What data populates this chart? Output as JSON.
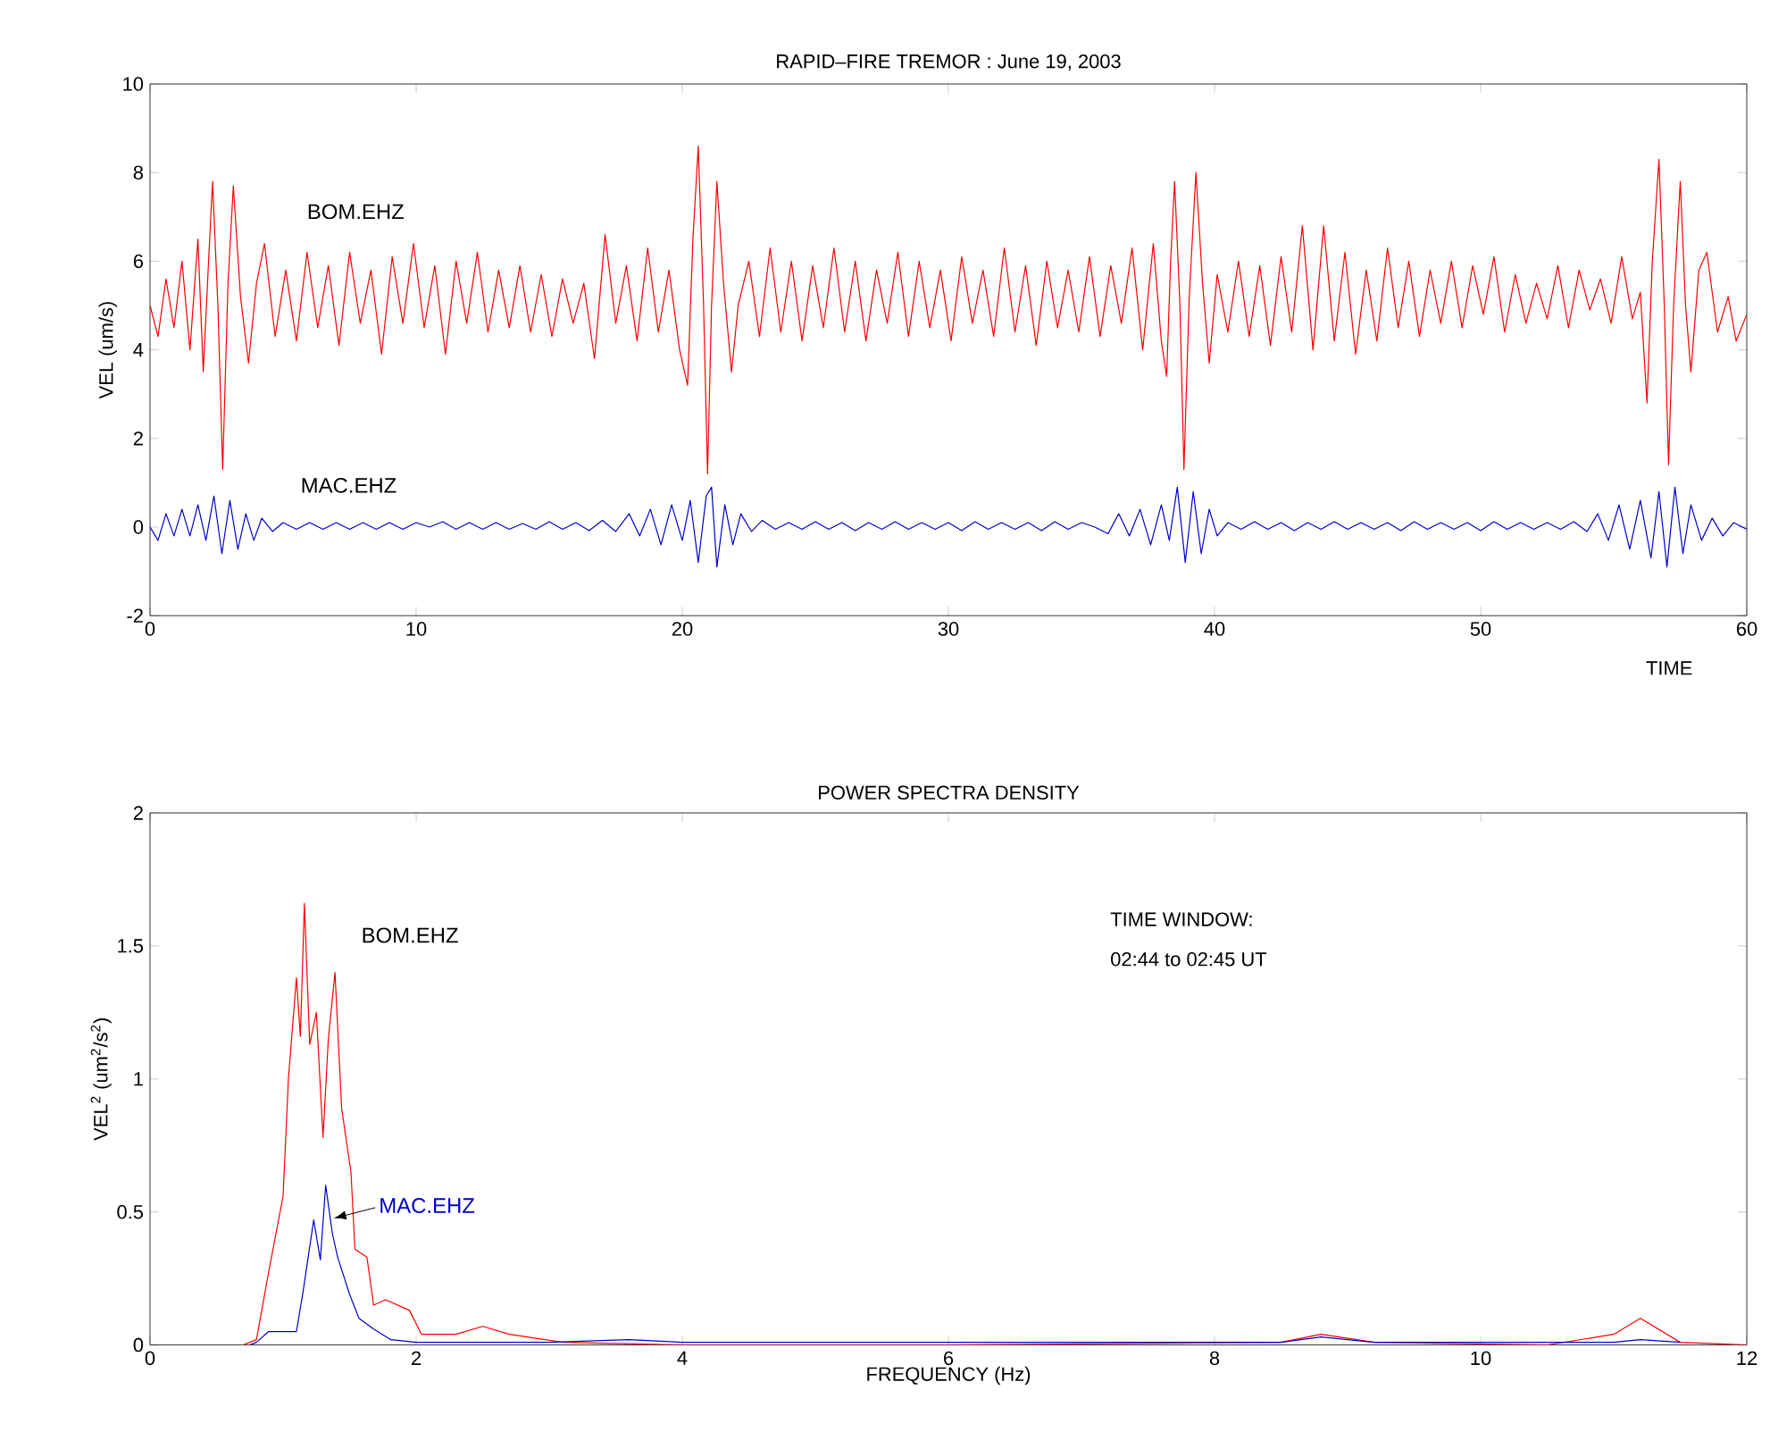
{
  "chart_data": [
    {
      "type": "line",
      "title": "RAPID–FIRE TREMOR : June 19, 2003",
      "xlabel": "TIME",
      "ylabel": "VEL (um/s)",
      "xlim": [
        0,
        60
      ],
      "ylim": [
        -2,
        10
      ],
      "xticks": [
        0,
        10,
        20,
        30,
        40,
        50,
        60
      ],
      "yticks": [
        -2,
        0,
        2,
        4,
        6,
        8,
        10
      ],
      "series": [
        {
          "name": "BOM.EHZ",
          "color": "#ff0000",
          "x": [
            0,
            0.3,
            0.6,
            0.9,
            1.2,
            1.5,
            1.8,
            2.0,
            2.2,
            2.35,
            2.55,
            2.73,
            2.93,
            3.13,
            3.4,
            3.7,
            4.0,
            4.3,
            4.7,
            5.1,
            5.5,
            5.9,
            6.3,
            6.7,
            7.1,
            7.5,
            7.9,
            8.3,
            8.7,
            9.1,
            9.5,
            9.9,
            10.3,
            10.7,
            11.1,
            11.5,
            11.9,
            12.3,
            12.7,
            13.1,
            13.5,
            13.9,
            14.3,
            14.7,
            15.1,
            15.5,
            15.9,
            16.3,
            16.7,
            17.1,
            17.5,
            17.9,
            18.3,
            18.7,
            19.1,
            19.5,
            19.9,
            20.2,
            20.4,
            20.6,
            20.8,
            20.95,
            21.1,
            21.3,
            21.55,
            21.85,
            22.1,
            22.5,
            22.9,
            23.3,
            23.7,
            24.1,
            24.5,
            24.9,
            25.3,
            25.7,
            26.1,
            26.5,
            26.9,
            27.3,
            27.7,
            28.1,
            28.5,
            28.9,
            29.3,
            29.7,
            30.1,
            30.5,
            30.9,
            31.3,
            31.7,
            32.1,
            32.5,
            32.9,
            33.3,
            33.7,
            34.1,
            34.5,
            34.9,
            35.3,
            35.7,
            36.1,
            36.5,
            36.9,
            37.3,
            37.7,
            38.0,
            38.2,
            38.35,
            38.5,
            38.7,
            38.85,
            39.05,
            39.3,
            39.55,
            39.8,
            40.1,
            40.5,
            40.9,
            41.3,
            41.7,
            42.1,
            42.5,
            42.9,
            43.3,
            43.7,
            44.1,
            44.5,
            44.9,
            45.3,
            45.7,
            46.1,
            46.5,
            46.9,
            47.3,
            47.7,
            48.1,
            48.5,
            48.9,
            49.3,
            49.7,
            50.1,
            50.5,
            50.9,
            51.3,
            51.7,
            52.1,
            52.5,
            52.9,
            53.3,
            53.7,
            54.1,
            54.5,
            54.9,
            55.3,
            55.7,
            56.0,
            56.25,
            56.45,
            56.7,
            56.9,
            57.06,
            57.25,
            57.5,
            57.7,
            57.9,
            58.2,
            58.5,
            58.9,
            59.3,
            59.6,
            60
          ],
          "values": [
            5.0,
            4.3,
            5.6,
            4.5,
            6.0,
            4.0,
            6.5,
            3.5,
            6.0,
            7.8,
            5.0,
            1.3,
            5.5,
            7.7,
            5.2,
            3.7,
            5.5,
            6.4,
            4.3,
            5.8,
            4.2,
            6.2,
            4.5,
            5.9,
            4.1,
            6.2,
            4.6,
            5.8,
            3.9,
            6.1,
            4.6,
            6.4,
            4.5,
            5.9,
            3.9,
            6.0,
            4.6,
            6.2,
            4.4,
            5.8,
            4.5,
            5.9,
            4.4,
            5.7,
            4.3,
            5.6,
            4.6,
            5.5,
            3.8,
            6.6,
            4.6,
            5.9,
            4.2,
            6.3,
            4.4,
            5.8,
            4.0,
            3.2,
            6.5,
            8.6,
            5.0,
            1.2,
            5.0,
            7.8,
            5.5,
            3.5,
            5.0,
            6.0,
            4.3,
            6.3,
            4.4,
            6.0,
            4.2,
            5.9,
            4.5,
            6.3,
            4.4,
            6.0,
            4.2,
            5.8,
            4.6,
            6.2,
            4.3,
            6.0,
            4.5,
            5.8,
            4.2,
            6.1,
            4.6,
            5.8,
            4.3,
            6.3,
            4.4,
            5.9,
            4.1,
            6.0,
            4.5,
            5.8,
            4.4,
            6.1,
            4.3,
            5.9,
            4.6,
            6.3,
            4.0,
            6.4,
            4.2,
            3.4,
            6.0,
            7.8,
            5.0,
            1.3,
            5.2,
            8.0,
            5.5,
            3.7,
            5.7,
            4.4,
            6.0,
            4.3,
            5.9,
            4.1,
            6.1,
            4.4,
            6.8,
            4.0,
            6.8,
            4.2,
            6.2,
            3.9,
            5.8,
            4.2,
            6.3,
            4.5,
            6.0,
            4.3,
            5.8,
            4.6,
            6.0,
            4.5,
            5.9,
            4.8,
            6.1,
            4.4,
            5.7,
            4.6,
            5.5,
            4.7,
            5.9,
            4.5,
            5.8,
            4.9,
            5.6,
            4.6,
            6.1,
            4.7,
            5.3,
            2.8,
            6.0,
            8.3,
            5.0,
            1.4,
            5.0,
            7.8,
            5.0,
            3.5,
            5.8,
            6.2,
            4.4,
            5.2,
            4.2,
            4.8
          ]
        },
        {
          "name": "MAC.EHZ",
          "color": "#0000cc",
          "x": [
            0,
            0.3,
            0.6,
            0.9,
            1.2,
            1.5,
            1.8,
            2.1,
            2.4,
            2.7,
            3.0,
            3.3,
            3.6,
            3.9,
            4.2,
            4.6,
            5.0,
            5.5,
            6.0,
            6.5,
            7.0,
            7.5,
            8.0,
            8.5,
            9.0,
            9.5,
            10.0,
            10.5,
            11.0,
            11.5,
            12.0,
            12.5,
            13.0,
            13.5,
            14.0,
            14.5,
            15.0,
            15.5,
            16.0,
            16.5,
            17.0,
            17.5,
            18.0,
            18.4,
            18.8,
            19.2,
            19.6,
            20.0,
            20.3,
            20.6,
            20.9,
            21.1,
            21.3,
            21.6,
            21.9,
            22.2,
            22.6,
            23.0,
            23.5,
            24.0,
            24.5,
            25.0,
            25.5,
            26.0,
            26.5,
            27.0,
            27.5,
            28.0,
            28.5,
            29.0,
            29.5,
            30.0,
            30.5,
            31.0,
            31.5,
            32.0,
            32.5,
            33.0,
            33.5,
            34.0,
            34.5,
            35.0,
            35.5,
            36.0,
            36.4,
            36.8,
            37.2,
            37.6,
            38.0,
            38.3,
            38.6,
            38.9,
            39.2,
            39.5,
            39.8,
            40.1,
            40.5,
            41.0,
            41.5,
            42.0,
            42.5,
            43.0,
            43.5,
            44.0,
            44.5,
            45.0,
            45.5,
            46.0,
            46.5,
            47.0,
            47.5,
            48.0,
            48.5,
            49.0,
            49.5,
            50.0,
            50.5,
            51.0,
            51.5,
            52.0,
            52.5,
            53.0,
            53.5,
            54.0,
            54.4,
            54.8,
            55.2,
            55.6,
            56.0,
            56.4,
            56.7,
            57.0,
            57.3,
            57.6,
            57.9,
            58.3,
            58.7,
            59.1,
            59.5,
            60
          ],
          "values": [
            0.0,
            -0.3,
            0.3,
            -0.2,
            0.4,
            -0.2,
            0.5,
            -0.3,
            0.7,
            -0.6,
            0.6,
            -0.5,
            0.3,
            -0.3,
            0.2,
            -0.1,
            0.1,
            -0.05,
            0.1,
            -0.05,
            0.1,
            -0.05,
            0.1,
            -0.05,
            0.1,
            -0.05,
            0.1,
            0.0,
            0.12,
            -0.05,
            0.1,
            -0.05,
            0.1,
            -0.05,
            0.08,
            -0.05,
            0.12,
            -0.05,
            0.1,
            -0.08,
            0.15,
            -0.1,
            0.3,
            -0.2,
            0.4,
            -0.4,
            0.5,
            -0.3,
            0.6,
            -0.8,
            0.7,
            0.9,
            -0.9,
            0.5,
            -0.4,
            0.3,
            -0.1,
            0.15,
            -0.05,
            0.1,
            -0.05,
            0.12,
            -0.05,
            0.1,
            -0.08,
            0.1,
            -0.05,
            0.12,
            -0.05,
            0.1,
            -0.05,
            0.1,
            -0.08,
            0.12,
            -0.05,
            0.1,
            -0.05,
            0.1,
            -0.08,
            0.12,
            -0.05,
            0.1,
            0.0,
            -0.15,
            0.3,
            -0.2,
            0.4,
            -0.4,
            0.5,
            -0.3,
            0.9,
            -0.8,
            0.8,
            -0.6,
            0.4,
            -0.2,
            0.1,
            -0.05,
            0.12,
            -0.05,
            0.1,
            -0.08,
            0.1,
            -0.05,
            0.12,
            -0.05,
            0.1,
            -0.05,
            0.1,
            -0.08,
            0.12,
            -0.05,
            0.1,
            -0.05,
            0.1,
            -0.08,
            0.12,
            -0.05,
            0.1,
            -0.05,
            0.1,
            -0.05,
            0.12,
            -0.1,
            0.3,
            -0.3,
            0.5,
            -0.5,
            0.6,
            -0.7,
            0.8,
            -0.9,
            0.9,
            -0.6,
            0.5,
            -0.3,
            0.2,
            -0.2,
            0.1,
            -0.05
          ]
        }
      ]
    },
    {
      "type": "line",
      "title": "POWER SPECTRA DENSITY",
      "xlabel": "FREQUENCY (Hz)",
      "ylabel": "VEL$^{2}$ (um$^{2}$/s$^{2}$)",
      "xlim": [
        0,
        12
      ],
      "ylim": [
        0,
        2
      ],
      "xticks": [
        0,
        2,
        4,
        6,
        8,
        10,
        12
      ],
      "yticks": [
        0,
        0.5,
        1,
        1.5,
        2
      ],
      "annotations": [
        "TIME WINDOW:",
        "02:44 to 02:45 UT"
      ],
      "series": [
        {
          "name": "BOM.EHZ",
          "color": "#ff0000",
          "x": [
            0.7,
            0.8,
            0.89,
            1.0,
            1.04,
            1.1,
            1.13,
            1.16,
            1.2,
            1.25,
            1.3,
            1.34,
            1.39,
            1.44,
            1.51,
            1.54,
            1.63,
            1.68,
            1.77,
            1.95,
            2.04,
            2.3,
            2.5,
            2.7,
            3.1,
            4.0,
            6.0,
            8.5,
            8.8,
            9.2,
            10.5,
            11.0,
            11.2,
            11.5,
            12
          ],
          "values": [
            0,
            0.02,
            0.27,
            0.56,
            1.0,
            1.38,
            1.16,
            1.66,
            1.13,
            1.25,
            0.78,
            1.15,
            1.4,
            0.89,
            0.65,
            0.36,
            0.33,
            0.15,
            0.17,
            0.13,
            0.04,
            0.04,
            0.07,
            0.04,
            0.01,
            0,
            0,
            0.01,
            0.04,
            0.01,
            0,
            0.04,
            0.1,
            0.01,
            0
          ]
        },
        {
          "name": "MAC.EHZ",
          "color": "#0000cc",
          "x": [
            0.75,
            0.8,
            0.89,
            1.1,
            1.15,
            1.23,
            1.28,
            1.32,
            1.37,
            1.41,
            1.5,
            1.57,
            1.68,
            1.81,
            2.0,
            3.0,
            3.6,
            4.0,
            8.5,
            8.8,
            9.2,
            11.0,
            11.2,
            11.5
          ],
          "values": [
            0,
            0.01,
            0.05,
            0.05,
            0.2,
            0.47,
            0.32,
            0.6,
            0.42,
            0.33,
            0.19,
            0.1,
            0.06,
            0.02,
            0.01,
            0.01,
            0.02,
            0.01,
            0.01,
            0.03,
            0.01,
            0.01,
            0.02,
            0.01
          ]
        }
      ]
    }
  ]
}
